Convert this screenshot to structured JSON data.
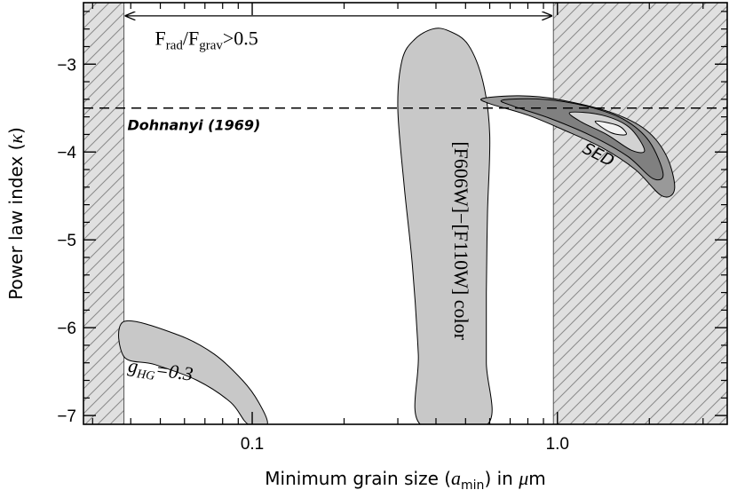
{
  "chart_data": {
    "type": "contour",
    "xlabel": "Minimum grain size (a_min) in μm",
    "xlabel_parts": {
      "pre": "Minimum grain size (",
      "sym": "a",
      "sub": "min",
      "post": ") in ",
      "mu": "μ",
      "unit": "m"
    },
    "ylabel": "Power law index (κ)",
    "ylabel_parts": {
      "pre": "Power law index (",
      "sym": "κ",
      "post": ")"
    },
    "x_scale": "log",
    "xlim": [
      0.028,
      3.6
    ],
    "ylim": [
      -7.1,
      -2.3
    ],
    "x_ticks": [
      {
        "value": 0.1,
        "label": "0.1"
      },
      {
        "value": 1.0,
        "label": "1.0"
      }
    ],
    "y_ticks": [
      {
        "value": -3,
        "label": "−3"
      },
      {
        "value": -4,
        "label": "−4"
      },
      {
        "value": -5,
        "label": "−5"
      },
      {
        "value": -6,
        "label": "−6"
      },
      {
        "value": -7,
        "label": "−7"
      }
    ],
    "excluded_regions": [
      {
        "x_from": 0.028,
        "x_to": 0.038,
        "style": "hatched"
      },
      {
        "x_from": 0.97,
        "x_to": 3.6,
        "style": "hatched"
      }
    ],
    "arrow": {
      "x_from": 0.038,
      "x_to": 0.97,
      "y": -2.45
    },
    "arrow_label": {
      "F1": "F",
      "s1": "rad",
      "slash": "/",
      "F2": "F",
      "s2": "grav",
      "tail": ">0.5"
    },
    "reference_line": {
      "y": -3.5,
      "style": "dashed",
      "label": "Dohnanyi (1969)"
    },
    "contours": [
      {
        "name": "[F606W]−[F110W] color",
        "fill": "#c8c8c8",
        "polygon": [
          [
            0.3,
            -3.5
          ],
          [
            0.31,
            -2.95
          ],
          [
            0.34,
            -2.72
          ],
          [
            0.39,
            -2.6
          ],
          [
            0.44,
            -2.62
          ],
          [
            0.51,
            -2.78
          ],
          [
            0.57,
            -3.2
          ],
          [
            0.6,
            -3.8
          ],
          [
            0.59,
            -4.7
          ],
          [
            0.585,
            -5.6
          ],
          [
            0.585,
            -6.4
          ],
          [
            0.59,
            -7.1
          ],
          [
            0.355,
            -7.1
          ],
          [
            0.35,
            -6.3
          ],
          [
            0.335,
            -5.3
          ],
          [
            0.315,
            -4.4
          ]
        ]
      },
      {
        "name": "g_HG=0.3",
        "label_parts": {
          "g": "g",
          "sub": "HG",
          "tail": "=0.3"
        },
        "fill": "#c8c8c8",
        "polygon": [
          [
            0.038,
            -5.93
          ],
          [
            0.057,
            -6.08
          ],
          [
            0.075,
            -6.3
          ],
          [
            0.093,
            -6.6
          ],
          [
            0.105,
            -6.85
          ],
          [
            0.112,
            -7.1
          ],
          [
            0.097,
            -7.1
          ],
          [
            0.085,
            -6.85
          ],
          [
            0.066,
            -6.6
          ],
          [
            0.048,
            -6.42
          ],
          [
            0.038,
            -6.33
          ]
        ]
      },
      {
        "name": "SED",
        "fill": "#999999",
        "polygon": [
          [
            0.57,
            -3.39
          ],
          [
            0.75,
            -3.36
          ],
          [
            1.0,
            -3.4
          ],
          [
            1.5,
            -3.55
          ],
          [
            1.95,
            -3.75
          ],
          [
            2.28,
            -4.05
          ],
          [
            2.42,
            -4.42
          ],
          [
            2.2,
            -4.5
          ],
          [
            1.8,
            -4.2
          ],
          [
            1.4,
            -3.95
          ],
          [
            1.05,
            -3.75
          ],
          [
            0.8,
            -3.58
          ],
          [
            0.6,
            -3.45
          ]
        ]
      },
      {
        "name": "SED-level-2",
        "fill": "#808080",
        "polygon": [
          [
            0.66,
            -3.41
          ],
          [
            0.9,
            -3.4
          ],
          [
            1.25,
            -3.48
          ],
          [
            1.65,
            -3.63
          ],
          [
            2.0,
            -3.88
          ],
          [
            2.22,
            -4.25
          ],
          [
            2.05,
            -4.3
          ],
          [
            1.7,
            -4.05
          ],
          [
            1.3,
            -3.82
          ],
          [
            0.95,
            -3.62
          ],
          [
            0.72,
            -3.48
          ]
        ]
      },
      {
        "name": "SED-level-3",
        "fill": "#d2d2d2",
        "polygon": [
          [
            1.1,
            -3.55
          ],
          [
            1.4,
            -3.58
          ],
          [
            1.72,
            -3.72
          ],
          [
            1.93,
            -3.98
          ],
          [
            1.75,
            -3.98
          ],
          [
            1.45,
            -3.8
          ],
          [
            1.2,
            -3.66
          ]
        ]
      },
      {
        "name": "SED-level-4",
        "fill": "#f2f2f2",
        "polygon": [
          [
            1.33,
            -3.65
          ],
          [
            1.58,
            -3.7
          ],
          [
            1.68,
            -3.8
          ],
          [
            1.5,
            -3.78
          ]
        ]
      }
    ],
    "labels": {
      "color": "[F606W]−[F110W] color",
      "sed": "SED"
    }
  }
}
